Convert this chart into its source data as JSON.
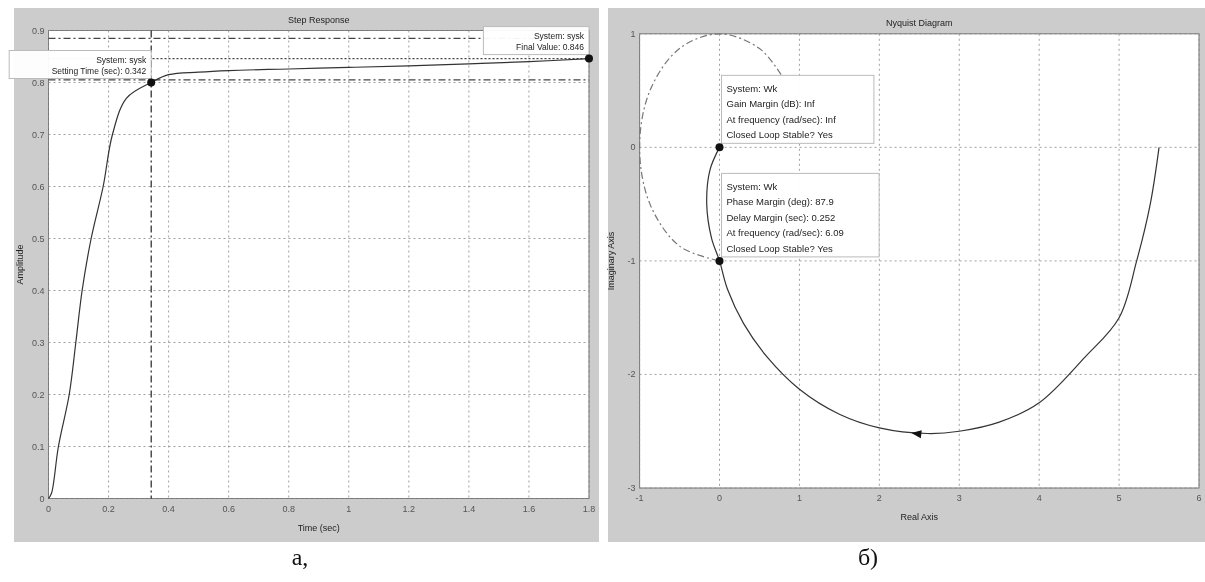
{
  "chart_data": [
    {
      "type": "line",
      "title": "Step Response",
      "xlabel": "Time (sec)",
      "ylabel": "Amplitude",
      "xlim": [
        0,
        1.8
      ],
      "ylim": [
        0,
        0.9
      ],
      "xticks": [
        0,
        0.2,
        0.4,
        0.6,
        0.8,
        1,
        1.2,
        1.4,
        1.6,
        1.8
      ],
      "yticks": [
        0,
        0.1,
        0.2,
        0.3,
        0.4,
        0.5,
        0.6,
        0.7,
        0.8,
        0.9
      ],
      "grid": true,
      "series": [
        {
          "color": "#333333",
          "line_style": "solid",
          "x": [
            0,
            0.01,
            0.033,
            0.069,
            0.091,
            0.112,
            0.142,
            0.182,
            0.213,
            0.26,
            0.342,
            0.4,
            0.5,
            0.6,
            0.8,
            1.0,
            1.2,
            1.4,
            1.6,
            1.8
          ],
          "values": [
            0,
            0.01,
            0.1,
            0.2,
            0.3,
            0.4,
            0.5,
            0.6,
            0.7,
            0.77,
            0.8,
            0.815,
            0.82,
            0.823,
            0.826,
            0.829,
            0.832,
            0.836,
            0.84,
            0.846
          ]
        }
      ],
      "ref_lines": [
        {
          "axis": "y",
          "value": 0.885,
          "color": "#444444",
          "line_style": "dashed"
        },
        {
          "axis": "y",
          "value": 0.805,
          "color": "#444444",
          "line_style": "dashed"
        },
        {
          "axis": "y",
          "value": 0.846,
          "color": "#444444",
          "line_style": "dotted"
        },
        {
          "axis": "x",
          "value": 0.342,
          "color": "#222222",
          "line_style": "dashed"
        }
      ],
      "annotations": [
        {
          "text": "System: sysk\nSetting Time (sec): 0.342",
          "x": 0.342,
          "y": 0.8
        },
        {
          "text": "System: sysk\nFinal Value: 0.846",
          "x": 1.8,
          "y": 0.846
        },
        "а,"
      ]
    },
    {
      "type": "line",
      "title": "Nyquist Diagram",
      "xlabel": "Real Axis",
      "ylabel": "Imaginary Axis",
      "xlim": [
        -1,
        6
      ],
      "ylim": [
        -3,
        1
      ],
      "xticks": [
        -1,
        0,
        1,
        2,
        3,
        4,
        5,
        6
      ],
      "yticks": [
        -3,
        -2,
        -1,
        0,
        1
      ],
      "grid": true,
      "series": [
        {
          "color": "#333333",
          "line_style": "solid",
          "x": [
            5.5,
            5.39,
            5.22,
            5.0,
            4.57,
            4.0,
            3.5,
            3.0,
            2.6,
            2.0,
            1.5,
            1.0,
            0.6,
            0.3,
            0.1,
            0,
            -0.1,
            -0.16,
            -0.12,
            0
          ],
          "values": [
            0,
            -0.5,
            -1,
            -1.5,
            -1.85,
            -2.25,
            -2.42,
            -2.5,
            -2.52,
            -2.47,
            -2.35,
            -2.13,
            -1.85,
            -1.55,
            -1.25,
            -1,
            -0.8,
            -0.5,
            -0.2,
            0
          ]
        },
        {
          "color": "#777777",
          "line_style": "dashed",
          "x": [
            0.77,
            0.5,
            0,
            -0.5,
            -0.87,
            -1,
            -0.87,
            -0.5,
            0
          ],
          "values": [
            0.64,
            0.87,
            1,
            0.87,
            0.5,
            0,
            -0.5,
            -0.87,
            -1
          ]
        }
      ],
      "annotations": [
        {
          "text": "System: Wk\nGain Margin (dB): Inf\nAt frequency (rad/sec): Inf\nClosed Loop Stable? Yes",
          "x": 0,
          "y": 0
        },
        {
          "text": "System: Wk\nPhase Margin (deg): 87.9\nDelay Margin (sec): 0.252\nAt frequency (rad/sec): 6.09\nClosed Loop Stable? Yes",
          "x": 0,
          "y": -1
        },
        "б)"
      ]
    }
  ]
}
